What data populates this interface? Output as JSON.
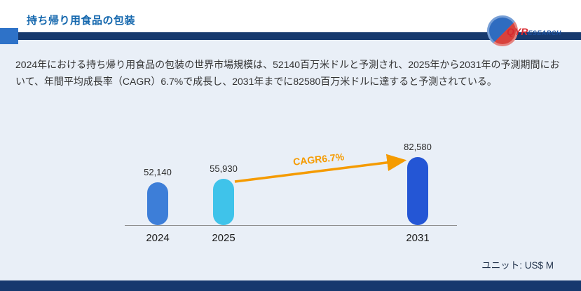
{
  "header": {
    "title": "持ち帰り用食品の包装",
    "logo": {
      "part1": "QYR",
      "part2": "ESEARCH"
    }
  },
  "summary": {
    "text": "2024年における持ち帰り用食品の包装の世界市場規模は、52140百万米ドルと予測され、2025年から2031年の予測期間において、年間平均成長率（CAGR）6.7%で成長し、2031年までに82580百万米ドルに達すると予測されている。"
  },
  "chart_data": {
    "type": "bar",
    "categories": [
      "2024",
      "2025",
      "2031"
    ],
    "values": [
      52140,
      55930,
      82580
    ],
    "display_values": [
      "52,140",
      "55,930",
      "82,580"
    ],
    "cagr_label": "CAGR6.7%",
    "unit_label": "ユニット: US$ M",
    "bar_colors": [
      "#3d7ed8",
      "#3fc3ea",
      "#2456d5"
    ],
    "arrow_color": "#f59b00",
    "ylim": [
      0,
      90000
    ],
    "grid": false,
    "legend": "none",
    "title": "",
    "xlabel": "",
    "ylabel": ""
  }
}
